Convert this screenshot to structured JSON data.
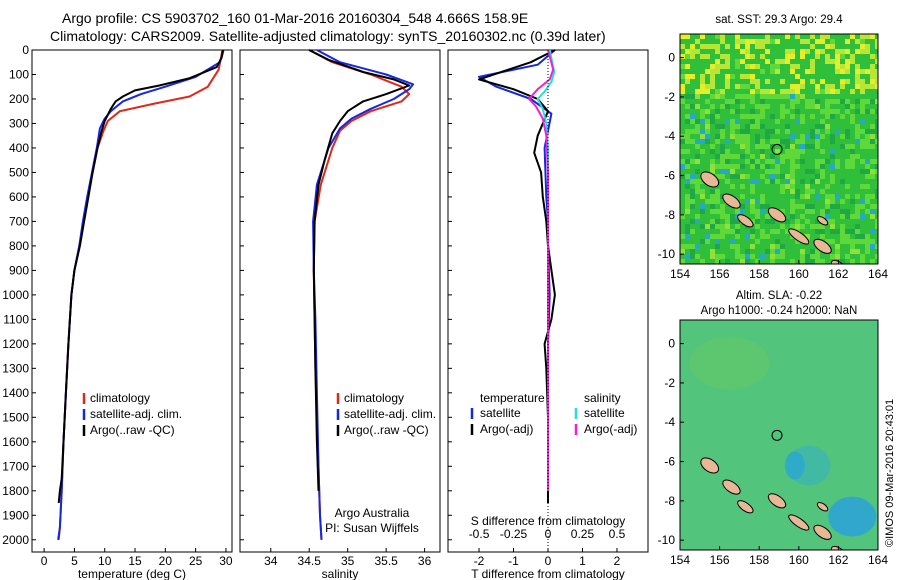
{
  "header": {
    "line1": "Argo profile: CS 5903702_160 01-Mar-2016 20160304_548 4.666S 158.9E",
    "line2": "Climatology: CARS2009. Satellite-adjusted climatology: synTS_20160302.nc (0.39d later)"
  },
  "credit": "©IMOS 09-Mar-2016 20:43:01",
  "colors": {
    "climatology": "#e0281a",
    "satellite": "#1428e0",
    "argo": "#000000",
    "salinity_sat": "#22dde0",
    "salinity_argo": "#ee22dd",
    "land": "#e8b896"
  },
  "chart_data": [
    {
      "type": "line",
      "panel": "temperature",
      "xlabel": "temperature (deg C)",
      "ylabel": "",
      "xlim": [
        -2,
        31
      ],
      "ylim": [
        2050,
        0
      ],
      "xticks": [
        0,
        5,
        10,
        15,
        20,
        25,
        30
      ],
      "yticks": [
        0,
        100,
        200,
        300,
        400,
        500,
        600,
        700,
        800,
        900,
        1000,
        1100,
        1200,
        1300,
        1400,
        1500,
        1600,
        1700,
        1800,
        1900,
        2000
      ],
      "legend": [
        "climatology",
        "satellite-adj. clim.",
        "Argo(..raw -QC)"
      ],
      "series": [
        {
          "name": "climatology",
          "color": "#e0281a",
          "x": [
            29.4,
            29.2,
            28.8,
            27.0,
            24.0,
            18.0,
            12.5,
            10.5,
            9.8,
            8.8,
            8.0,
            7.2,
            6.5,
            5.8,
            5.0,
            4.5,
            4.0,
            3.6,
            3.2,
            2.9,
            2.6,
            2.4
          ],
          "y": [
            0,
            30,
            80,
            150,
            190,
            220,
            250,
            290,
            330,
            400,
            500,
            600,
            700,
            800,
            900,
            1000,
            1200,
            1400,
            1600,
            1800,
            1950,
            2000
          ]
        },
        {
          "name": "satellite-adj. clim.",
          "color": "#1428e0",
          "x": [
            29.6,
            29.4,
            29.0,
            25.0,
            20.0,
            16.0,
            13.0,
            11.0,
            10.0,
            9.2,
            8.7,
            7.9,
            7.1,
            6.4,
            5.8,
            5.0,
            4.5,
            4.0,
            3.6,
            3.2,
            2.9,
            2.6,
            2.3
          ],
          "y": [
            0,
            20,
            50,
            110,
            150,
            180,
            210,
            250,
            280,
            320,
            400,
            500,
            600,
            700,
            800,
            900,
            1000,
            1200,
            1400,
            1600,
            1800,
            1950,
            2000
          ]
        },
        {
          "name": "Argo(..raw -QC)",
          "color": "#000000",
          "x": [
            29.5,
            29.3,
            28.5,
            24.0,
            19.0,
            15.0,
            13.0,
            11.8,
            11.0,
            10.0,
            9.5,
            8.8,
            8.0,
            7.3,
            6.6,
            5.9,
            5.0,
            4.5,
            4.0,
            3.6,
            3.2,
            2.9,
            2.6,
            2.4
          ],
          "y": [
            0,
            30,
            70,
            115,
            145,
            165,
            190,
            210,
            240,
            290,
            330,
            400,
            500,
            600,
            700,
            800,
            900,
            1000,
            1200,
            1400,
            1600,
            1750,
            1800,
            1850
          ]
        }
      ]
    },
    {
      "type": "line",
      "panel": "salinity",
      "xlabel": "salinity",
      "xlim": [
        33.6,
        36.2
      ],
      "ylim": [
        2050,
        0
      ],
      "xticks": [
        34,
        34.5,
        35,
        35.5,
        36
      ],
      "legend": [
        "climatology",
        "satellite-adj. clim.",
        "Argo(..raw -QC)"
      ],
      "annotation": [
        "Argo Australia",
        "PI: Susan Wijffels"
      ],
      "series": [
        {
          "name": "climatology",
          "color": "#e0281a",
          "x": [
            34.5,
            34.8,
            35.3,
            35.7,
            35.8,
            35.7,
            35.3,
            35.05,
            34.9,
            34.8,
            34.65,
            34.57,
            34.56,
            34.57,
            34.58,
            34.6,
            34.62,
            34.63,
            34.64,
            34.66
          ],
          "y": [
            0,
            50,
            100,
            150,
            180,
            210,
            250,
            290,
            330,
            400,
            550,
            700,
            900,
            1100,
            1300,
            1500,
            1700,
            1800,
            1900,
            2000
          ]
        },
        {
          "name": "satellite-adj. clim.",
          "color": "#1428e0",
          "x": [
            34.6,
            34.9,
            35.5,
            35.85,
            35.8,
            35.6,
            35.3,
            35.05,
            34.9,
            34.75,
            34.6,
            34.55,
            34.56,
            34.58,
            34.6,
            34.62,
            34.64,
            34.66
          ],
          "y": [
            0,
            50,
            100,
            140,
            160,
            200,
            240,
            280,
            320,
            400,
            550,
            700,
            900,
            1100,
            1400,
            1700,
            1900,
            2000
          ]
        },
        {
          "name": "Argo(..raw -QC)",
          "color": "#000000",
          "x": [
            34.5,
            34.75,
            35.2,
            35.6,
            35.8,
            35.5,
            35.2,
            35.0,
            34.9,
            34.8,
            34.7,
            34.62,
            34.57,
            34.56,
            34.57,
            34.58,
            34.6,
            34.62
          ],
          "y": [
            0,
            40,
            90,
            120,
            145,
            180,
            210,
            250,
            290,
            340,
            450,
            550,
            700,
            900,
            1100,
            1300,
            1600,
            1800
          ]
        }
      ]
    },
    {
      "type": "line",
      "panel": "difference",
      "xlabel": "T difference from climatology",
      "xlabel_top": "S difference from climatology",
      "xlim": [
        -2.9,
        2.9
      ],
      "ylim": [
        2050,
        0
      ],
      "xticks": [
        -2,
        -1,
        0,
        1,
        2
      ],
      "xticks_top": [
        -0.5,
        -0.25,
        0,
        0.25,
        0.5
      ],
      "legend_headers": [
        "temperature",
        "salinity"
      ],
      "legend": [
        "satellite",
        "Argo(-adj)",
        "satellite",
        "Argo(-adj)"
      ],
      "series": [
        {
          "name": "temperature satellite",
          "color": "#1428e0",
          "x": [
            0.2,
            -0.3,
            -2.0,
            -1.5,
            -0.5,
            0.1,
            -0.1,
            -0.05,
            0.0,
            0.0,
            0.05,
            0.0,
            0.0,
            0.0,
            0.0,
            0.0
          ],
          "y": [
            0,
            60,
            110,
            150,
            200,
            260,
            400,
            600,
            700,
            800,
            1000,
            1200,
            1400,
            1600,
            1800,
            1850
          ]
        },
        {
          "name": "temperature Argo(-adj)",
          "color": "#000000",
          "x": [
            0.2,
            -0.5,
            -2.0,
            -1.0,
            -0.3,
            0.0,
            -0.3,
            -0.4,
            -0.2,
            -0.15,
            -0.05,
            0.0,
            0.2,
            0.1,
            -0.1,
            -0.05,
            0.0,
            0.0,
            0.0
          ],
          "y": [
            0,
            50,
            120,
            160,
            200,
            250,
            350,
            420,
            500,
            600,
            700,
            800,
            1000,
            1100,
            1200,
            1300,
            1500,
            1700,
            1850
          ]
        },
        {
          "name": "salinity satellite",
          "color": "#22dde0",
          "x": [
            0.05,
            0.18,
            0.1,
            -0.1,
            -0.3,
            -0.15,
            -0.05,
            0.0,
            0.0,
            0.0,
            0.0
          ],
          "y": [
            0,
            90,
            130,
            170,
            200,
            240,
            300,
            400,
            600,
            1000,
            1800
          ]
        },
        {
          "name": "salinity Argo(-adj)",
          "color": "#ee22dd",
          "x": [
            0.0,
            0.15,
            0.05,
            -0.3,
            -0.55,
            -0.35,
            -0.15,
            -0.05,
            0.0,
            0.0,
            0.0
          ],
          "y": [
            0,
            80,
            120,
            160,
            200,
            230,
            280,
            350,
            500,
            1000,
            1800
          ]
        }
      ]
    },
    {
      "type": "heatmap",
      "panel": "sst_map",
      "title": "sat. SST: 29.3 Argo: 29.4",
      "xlim": [
        154,
        164
      ],
      "ylim": [
        -10.5,
        1.2
      ],
      "xticks": [
        154,
        156,
        158,
        160,
        162,
        164
      ],
      "yticks": [
        0,
        -2,
        -4,
        -6,
        -8,
        -10
      ],
      "float_position": [
        158.9,
        -4.666
      ]
    },
    {
      "type": "heatmap",
      "panel": "sla_map",
      "title": "Altim. SLA: -0.22",
      "subtitle": "Argo h1000: -0.24 h2000: NaN",
      "xlim": [
        154,
        164
      ],
      "ylim": [
        -10.5,
        1.2
      ],
      "xticks": [
        154,
        156,
        158,
        160,
        162,
        164
      ],
      "yticks": [
        0,
        -2,
        -4,
        -6,
        -8,
        -10
      ],
      "float_position": [
        158.9,
        -4.666
      ]
    }
  ]
}
